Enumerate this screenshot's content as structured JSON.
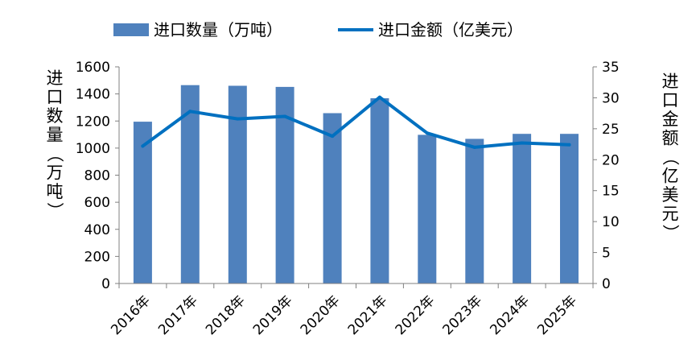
{
  "chart_data": {
    "type": "bar",
    "categories": [
      "2016年",
      "2017年",
      "2018年",
      "2019年",
      "2020年",
      "2021年",
      "2022年",
      "2023年",
      "2024年",
      "2025年"
    ],
    "series": [
      {
        "name": "进口数量（万吨）",
        "type": "bar",
        "axis": "left",
        "values": [
          1195,
          1465,
          1460,
          1452,
          1258,
          1368,
          1098,
          1068,
          1105,
          1105
        ]
      },
      {
        "name": "进口金额（亿美元）",
        "type": "line",
        "axis": "right",
        "values": [
          22.2,
          27.8,
          26.6,
          27.0,
          23.8,
          30.1,
          24.3,
          22.0,
          22.7,
          22.4
        ]
      }
    ],
    "ylabel": "进口数量（万吨）",
    "ylabel_right": "进口金额（亿美元）",
    "ylim": [
      0,
      1600
    ],
    "ylim_right": [
      0,
      35
    ],
    "yticks": [
      "0",
      "200",
      "400",
      "600",
      "800",
      "1000",
      "1200",
      "1400",
      "1600"
    ],
    "yticks_right": [
      "0",
      "5",
      "10",
      "15",
      "20",
      "25",
      "30",
      "35"
    ],
    "legend_position": "top",
    "grid": false,
    "colors": {
      "bar": "#4f81bd",
      "line": "#0070c0",
      "axis": "#808080"
    }
  }
}
